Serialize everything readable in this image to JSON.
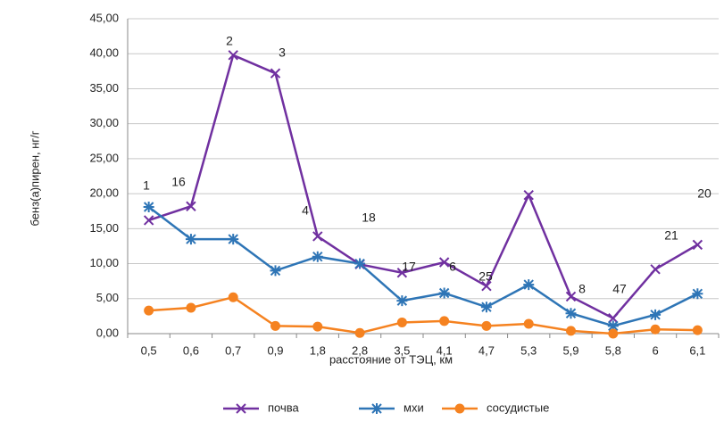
{
  "chart_data": {
    "type": "line",
    "ylabel": "бенз(а)пирен, нг/г",
    "xlabel": "расстояние от ТЭЦ, км",
    "categories": [
      "0,5",
      "0,6",
      "0,7",
      "0,9",
      "1,8",
      "2,8",
      "3,5",
      "4,1",
      "4,7",
      "5,3",
      "5,9",
      "5,8",
      "6",
      "6,1"
    ],
    "point_labels": [
      "1",
      "16",
      "2",
      "3",
      "4",
      "18",
      "17",
      "6",
      "25",
      null,
      "8",
      "47",
      "21",
      "20"
    ],
    "series": [
      {
        "name": "почва",
        "color": "#7030a0",
        "marker": "x",
        "values": [
          16.2,
          18.2,
          39.8,
          37.2,
          13.9,
          9.9,
          8.7,
          10.2,
          6.8,
          19.8,
          5.3,
          2.2,
          9.2,
          12.7
        ]
      },
      {
        "name": "мхи",
        "color": "#2e75b6",
        "marker": "star",
        "values": [
          18.1,
          13.5,
          13.5,
          9.0,
          11.0,
          10.0,
          4.7,
          5.8,
          3.8,
          7.0,
          2.9,
          1.1,
          2.7,
          5.7
        ]
      },
      {
        "name": "сосудистые",
        "color": "#f58220",
        "marker": "circle",
        "values": [
          3.3,
          3.7,
          5.2,
          1.1,
          1.0,
          0.1,
          1.6,
          1.8,
          1.1,
          1.4,
          0.4,
          0.0,
          0.6,
          0.5
        ]
      }
    ],
    "ylim": [
      0,
      45
    ],
    "yticks": [
      {
        "value": 0,
        "label": "0,00"
      },
      {
        "value": 5,
        "label": "5,00"
      },
      {
        "value": 10,
        "label": "10,00"
      },
      {
        "value": 15,
        "label": "15,00"
      },
      {
        "value": 20,
        "label": "20,00"
      },
      {
        "value": 25,
        "label": "25,00"
      },
      {
        "value": 30,
        "label": "30,00"
      },
      {
        "value": 35,
        "label": "35,00"
      },
      {
        "value": 40,
        "label": "40,00"
      },
      {
        "value": 45,
        "label": "45,00"
      }
    ],
    "grid": true,
    "legend": "bottom"
  }
}
